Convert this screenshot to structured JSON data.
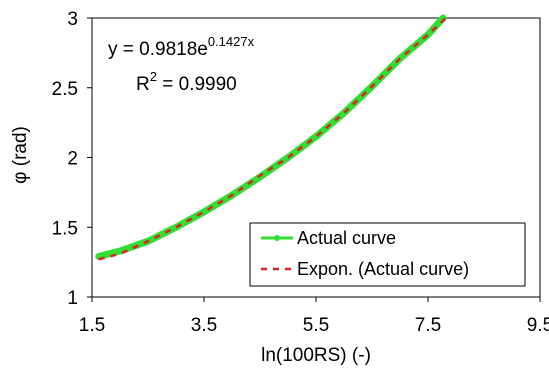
{
  "chart_data": {
    "type": "line",
    "xlabel": "ln(100RS) (-)",
    "ylabel": "φ (rad)",
    "xlim": [
      1.5,
      9.5
    ],
    "ylim": [
      1,
      3
    ],
    "x_ticks": [
      "1.5",
      "3.5",
      "5.5",
      "7.5",
      "9.5"
    ],
    "y_ticks": [
      "1",
      "1.5",
      "2",
      "2.5",
      "3"
    ],
    "grid": false,
    "legend_position": "bottom-right",
    "series": [
      {
        "name": "Actual curve",
        "color": "#33dd33",
        "style": "solid-thick",
        "x": [
          1.62,
          2.0,
          2.5,
          3.0,
          3.5,
          4.0,
          4.5,
          5.0,
          5.5,
          6.0,
          6.5,
          7.0,
          7.5,
          7.77
        ],
        "y": [
          1.29,
          1.33,
          1.4,
          1.5,
          1.61,
          1.73,
          1.86,
          2.0,
          2.15,
          2.32,
          2.51,
          2.71,
          2.88,
          3.0
        ]
      },
      {
        "name": "Expon. (Actual curve)",
        "color": "#dd2222",
        "style": "dashed",
        "x": [
          1.62,
          2.0,
          2.5,
          3.0,
          3.5,
          4.0,
          4.5,
          5.0,
          5.5,
          6.0,
          6.5,
          7.0,
          7.5,
          7.82
        ],
        "y": [
          1.27,
          1.31,
          1.4,
          1.5,
          1.61,
          1.73,
          1.87,
          2.0,
          2.15,
          2.32,
          2.51,
          2.71,
          2.88,
          3.0
        ]
      }
    ],
    "annotations": {
      "equation_base": "y = 0.9818e",
      "equation_exponent": "0.1427x",
      "r2_base": "R",
      "r2_sup": "2",
      "r2_value": " = 0.9990"
    }
  }
}
